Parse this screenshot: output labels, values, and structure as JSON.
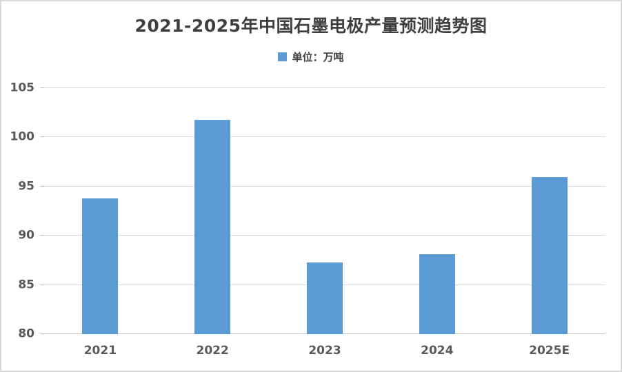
{
  "title": "2021-2025年中国石墨电极产量预测趋势图",
  "legend": {
    "label": "单位：万吨",
    "marker_color": "#5B9BD5"
  },
  "chart_data": {
    "type": "bar",
    "title": "2021-2025年中国石墨电极产量预测趋势图",
    "categories": [
      "2021",
      "2022",
      "2023",
      "2024",
      "2025E"
    ],
    "values": [
      93.8,
      101.8,
      87.3,
      88.1,
      96.0
    ],
    "series_name": "单位：万吨",
    "xlabel": "",
    "ylabel": "",
    "ylim": [
      80,
      105
    ],
    "yticks": [
      80,
      85,
      90,
      95,
      100,
      105
    ],
    "grid": true,
    "legend_position": "top",
    "bar_color": "#5B9BD5"
  },
  "colors": {
    "bar": "#5B9BD5",
    "title_text": "#3f3f3f",
    "axis_text": "#595959",
    "gridline": "#D9D9D9",
    "frame_border": "#D9D9D9",
    "background": "#FFFFFF"
  }
}
